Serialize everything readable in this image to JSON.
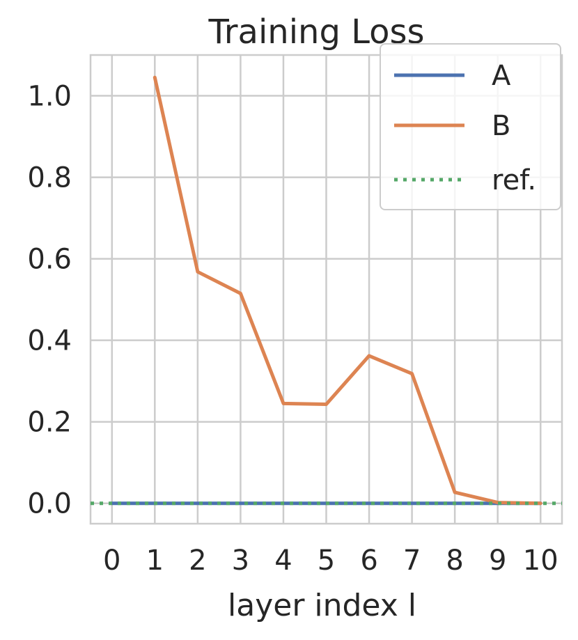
{
  "chart_data": {
    "type": "line",
    "title": "Training Loss",
    "xlabel": "layer index l",
    "ylabel": "",
    "xlim": [
      -0.5,
      10.5
    ],
    "ylim": [
      -0.05,
      1.1
    ],
    "x_ticks": [
      0,
      1,
      2,
      3,
      4,
      5,
      6,
      7,
      8,
      9,
      10
    ],
    "x_tick_labels": [
      "0",
      "1",
      "2",
      "3",
      "4",
      "5",
      "6",
      "7",
      "8",
      "9",
      "10"
    ],
    "y_ticks": [
      0.0,
      0.2,
      0.4,
      0.6,
      0.8,
      1.0
    ],
    "y_tick_labels": [
      "0.0",
      "0.2",
      "0.4",
      "0.6",
      "0.8",
      "1.0"
    ],
    "grid": true,
    "legend_position": "top-right",
    "series": [
      {
        "name": "A",
        "color": "#4c72b0",
        "style": "solid",
        "x": [
          0,
          1,
          2,
          3,
          4,
          5,
          6,
          7,
          8,
          9,
          10
        ],
        "y": [
          0,
          0,
          0,
          0,
          0,
          0,
          0,
          0,
          0,
          0,
          0
        ]
      },
      {
        "name": "B",
        "color": "#dd8452",
        "style": "solid",
        "x": [
          1,
          2,
          3,
          4,
          5,
          6,
          7,
          8,
          9,
          10
        ],
        "y": [
          1.045,
          0.568,
          0.515,
          0.245,
          0.243,
          0.362,
          0.318,
          0.027,
          0.002,
          0.0
        ]
      },
      {
        "name": "ref.",
        "color": "#55a868",
        "style": "dotted",
        "x": [
          -0.5,
          10.5
        ],
        "y": [
          0,
          0
        ]
      }
    ]
  }
}
